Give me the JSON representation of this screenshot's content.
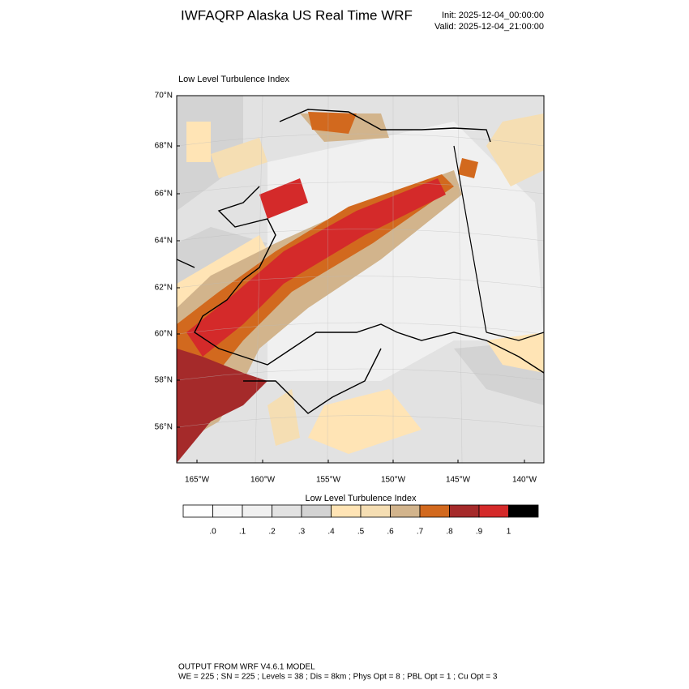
{
  "header": {
    "title": "IWFAQRP Alaska US Real Time WRF",
    "init": "Init: 2025-12-04_00:00:00",
    "valid": "Valid: 2025-12-04_21:00:00"
  },
  "map": {
    "title": "Low Level Turbulence Index",
    "lat_labels": [
      "70°N",
      "68°N",
      "66°N",
      "64°N",
      "62°N",
      "60°N",
      "58°N",
      "56°N"
    ],
    "lon_labels": [
      "165°W",
      "160°W",
      "155°W",
      "150°W",
      "145°W",
      "140°W"
    ]
  },
  "colorbar": {
    "title": "Low Level Turbulence Index",
    "colors": [
      "#ffffff",
      "#f8f8f8",
      "#f0f0f0",
      "#e2e2e2",
      "#d3d3d3",
      "#ffe4b5",
      "#f5deb3",
      "#d2b48c",
      "#d2691e",
      "#a52a2a",
      "#d42a2a",
      "#000000"
    ],
    "labels": [
      ".0",
      ".1",
      ".2",
      ".3",
      ".4",
      ".5",
      ".6",
      ".7",
      ".8",
      ".9",
      "1"
    ]
  },
  "footer": {
    "line1": "OUTPUT FROM WRF V4.6.1 MODEL",
    "line2": "WE = 225 ; SN = 225 ; Levels = 38 ; Dis = 8km ; Phys Opt = 8 ; PBL Opt = 1 ; Cu Opt = 3"
  }
}
